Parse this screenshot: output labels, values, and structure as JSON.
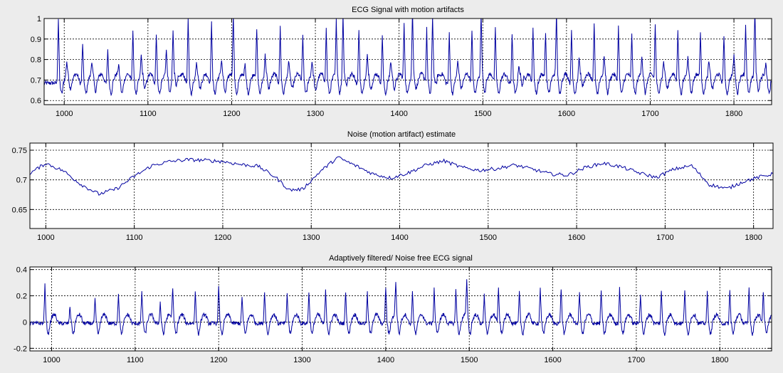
{
  "figure": {
    "background": "#ececec",
    "line_color": "#0000a0"
  },
  "chart_data": [
    {
      "type": "line",
      "title": "ECG Signal with motion artifacts",
      "xlabel": "",
      "ylabel": "",
      "xlim": [
        976,
        1845
      ],
      "ylim": [
        0.58,
        1.0
      ],
      "xticks": [
        1000,
        1100,
        1200,
        1300,
        1400,
        1500,
        1600,
        1700,
        1800
      ],
      "yticks": [
        0.6,
        0.7,
        0.8,
        0.9,
        1
      ],
      "ytick_labels": [
        "0.6",
        "0.7",
        "0.8",
        "0.9",
        "1"
      ],
      "grid": true,
      "baseline": 0.685,
      "beats": [
        {
          "x": 993,
          "peak": 1.0
        },
        {
          "x": 1003,
          "peak": 0.75
        },
        {
          "x": 1022,
          "peak": 0.88
        },
        {
          "x": 1033,
          "peak": 0.75
        },
        {
          "x": 1052,
          "peak": 0.85
        },
        {
          "x": 1065,
          "peak": 0.74
        },
        {
          "x": 1082,
          "peak": 0.95
        },
        {
          "x": 1092,
          "peak": 0.78
        },
        {
          "x": 1110,
          "peak": 0.93
        },
        {
          "x": 1122,
          "peak": 0.8
        },
        {
          "x": 1130,
          "peak": 0.92
        },
        {
          "x": 1148,
          "peak": 1.0
        },
        {
          "x": 1158,
          "peak": 0.75
        },
        {
          "x": 1176,
          "peak": 0.98
        },
        {
          "x": 1188,
          "peak": 0.76
        },
        {
          "x": 1202,
          "peak": 1.0
        },
        {
          "x": 1216,
          "peak": 0.75
        },
        {
          "x": 1230,
          "peak": 0.92
        },
        {
          "x": 1240,
          "peak": 0.78
        },
        {
          "x": 1258,
          "peak": 0.96
        },
        {
          "x": 1268,
          "peak": 0.75
        },
        {
          "x": 1285,
          "peak": 0.92
        },
        {
          "x": 1296,
          "peak": 0.75
        },
        {
          "x": 1313,
          "peak": 0.95
        },
        {
          "x": 1325,
          "peak": 0.95
        },
        {
          "x": 1333,
          "peak": 1.0
        },
        {
          "x": 1352,
          "peak": 0.95
        },
        {
          "x": 1362,
          "peak": 0.78
        },
        {
          "x": 1380,
          "peak": 0.92
        },
        {
          "x": 1390,
          "peak": 0.75
        },
        {
          "x": 1406,
          "peak": 0.97
        },
        {
          "x": 1416,
          "peak": 1.0
        },
        {
          "x": 1433,
          "peak": 0.95
        },
        {
          "x": 1440,
          "peak": 1.0
        },
        {
          "x": 1460,
          "peak": 0.93
        },
        {
          "x": 1470,
          "peak": 0.75
        },
        {
          "x": 1487,
          "peak": 0.95
        },
        {
          "x": 1498,
          "peak": 0.98
        },
        {
          "x": 1515,
          "peak": 0.95
        },
        {
          "x": 1535,
          "peak": 0.93
        },
        {
          "x": 1543,
          "peak": 0.75
        },
        {
          "x": 1560,
          "peak": 0.95
        },
        {
          "x": 1575,
          "peak": 0.92
        },
        {
          "x": 1588,
          "peak": 1.0
        },
        {
          "x": 1606,
          "peak": 0.95
        },
        {
          "x": 1615,
          "peak": 0.78
        },
        {
          "x": 1633,
          "peak": 0.98
        },
        {
          "x": 1645,
          "peak": 0.78
        },
        {
          "x": 1662,
          "peak": 0.96
        },
        {
          "x": 1678,
          "peak": 0.92
        },
        {
          "x": 1690,
          "peak": 0.78
        },
        {
          "x": 1706,
          "peak": 0.97
        },
        {
          "x": 1716,
          "peak": 0.75
        },
        {
          "x": 1733,
          "peak": 0.95
        },
        {
          "x": 1745,
          "peak": 0.78
        },
        {
          "x": 1760,
          "peak": 0.92
        },
        {
          "x": 1770,
          "peak": 0.75
        },
        {
          "x": 1788,
          "peak": 0.92
        },
        {
          "x": 1800,
          "peak": 0.78
        },
        {
          "x": 1814,
          "peak": 0.95
        },
        {
          "x": 1825,
          "peak": 1.0
        },
        {
          "x": 1838,
          "peak": 0.75
        }
      ]
    },
    {
      "type": "line",
      "title": "Noise (motion artifact) estimate",
      "xlabel": "",
      "ylabel": "",
      "xlim": [
        982,
        1822
      ],
      "ylim": [
        0.618,
        0.762
      ],
      "xticks": [
        1000,
        1100,
        1200,
        1300,
        1400,
        1500,
        1600,
        1700,
        1800
      ],
      "yticks": [
        0.65,
        0.7,
        0.75
      ],
      "ytick_labels": [
        "0.65",
        "0.7",
        "0.75"
      ],
      "grid": true,
      "x": [
        982,
        1000,
        1020,
        1040,
        1060,
        1080,
        1100,
        1120,
        1140,
        1160,
        1180,
        1200,
        1220,
        1240,
        1260,
        1275,
        1290,
        1310,
        1330,
        1350,
        1370,
        1390,
        1410,
        1430,
        1450,
        1470,
        1490,
        1510,
        1530,
        1550,
        1570,
        1590,
        1610,
        1630,
        1650,
        1670,
        1690,
        1710,
        1730,
        1750,
        1770,
        1790,
        1810,
        1822
      ],
      "y": [
        0.711,
        0.728,
        0.715,
        0.692,
        0.676,
        0.685,
        0.706,
        0.724,
        0.731,
        0.734,
        0.733,
        0.731,
        0.726,
        0.723,
        0.704,
        0.683,
        0.684,
        0.714,
        0.738,
        0.724,
        0.71,
        0.703,
        0.712,
        0.725,
        0.732,
        0.721,
        0.716,
        0.719,
        0.725,
        0.718,
        0.71,
        0.708,
        0.721,
        0.728,
        0.722,
        0.712,
        0.704,
        0.718,
        0.724,
        0.692,
        0.685,
        0.698,
        0.706,
        0.71
      ]
    },
    {
      "type": "line",
      "title": "Adaptively filtered/ Noise free ECG signal",
      "xlabel": "",
      "ylabel": "",
      "xlim": [
        974,
        1862
      ],
      "ylim": [
        -0.22,
        0.42
      ],
      "xticks": [
        1000,
        1100,
        1200,
        1300,
        1400,
        1500,
        1600,
        1700,
        1800
      ],
      "yticks": [
        -0.2,
        0,
        0.2,
        0.4
      ],
      "ytick_labels": [
        "-0.2",
        "0",
        "0.2",
        "0.4"
      ],
      "grid": true,
      "baseline": -0.01,
      "beats": [
        {
          "x": 992,
          "peak": 0.28
        },
        {
          "x": 1022,
          "peak": 0.12
        },
        {
          "x": 1052,
          "peak": 0.17
        },
        {
          "x": 1080,
          "peak": 0.22
        },
        {
          "x": 1108,
          "peak": 0.24
        },
        {
          "x": 1130,
          "peak": 0.15
        },
        {
          "x": 1145,
          "peak": 0.25
        },
        {
          "x": 1172,
          "peak": 0.24
        },
        {
          "x": 1200,
          "peak": 0.27
        },
        {
          "x": 1228,
          "peak": 0.2
        },
        {
          "x": 1255,
          "peak": 0.24
        },
        {
          "x": 1282,
          "peak": 0.22
        },
        {
          "x": 1308,
          "peak": 0.23
        },
        {
          "x": 1328,
          "peak": 0.25
        },
        {
          "x": 1352,
          "peak": 0.24
        },
        {
          "x": 1378,
          "peak": 0.22
        },
        {
          "x": 1400,
          "peak": 0.27
        },
        {
          "x": 1412,
          "peak": 0.25
        },
        {
          "x": 1432,
          "peak": 0.23
        },
        {
          "x": 1458,
          "peak": 0.26
        },
        {
          "x": 1484,
          "peak": 0.25
        },
        {
          "x": 1497,
          "peak": 0.26
        },
        {
          "x": 1518,
          "peak": 0.22
        },
        {
          "x": 1535,
          "peak": 0.25
        },
        {
          "x": 1560,
          "peak": 0.23
        },
        {
          "x": 1585,
          "peak": 0.27
        },
        {
          "x": 1610,
          "peak": 0.26
        },
        {
          "x": 1632,
          "peak": 0.23
        },
        {
          "x": 1658,
          "peak": 0.24
        },
        {
          "x": 1680,
          "peak": 0.27
        },
        {
          "x": 1705,
          "peak": 0.22
        },
        {
          "x": 1730,
          "peak": 0.23
        },
        {
          "x": 1758,
          "peak": 0.25
        },
        {
          "x": 1785,
          "peak": 0.23
        },
        {
          "x": 1812,
          "peak": 0.24
        },
        {
          "x": 1835,
          "peak": 0.26
        },
        {
          "x": 1852,
          "peak": 0.24
        }
      ]
    }
  ]
}
